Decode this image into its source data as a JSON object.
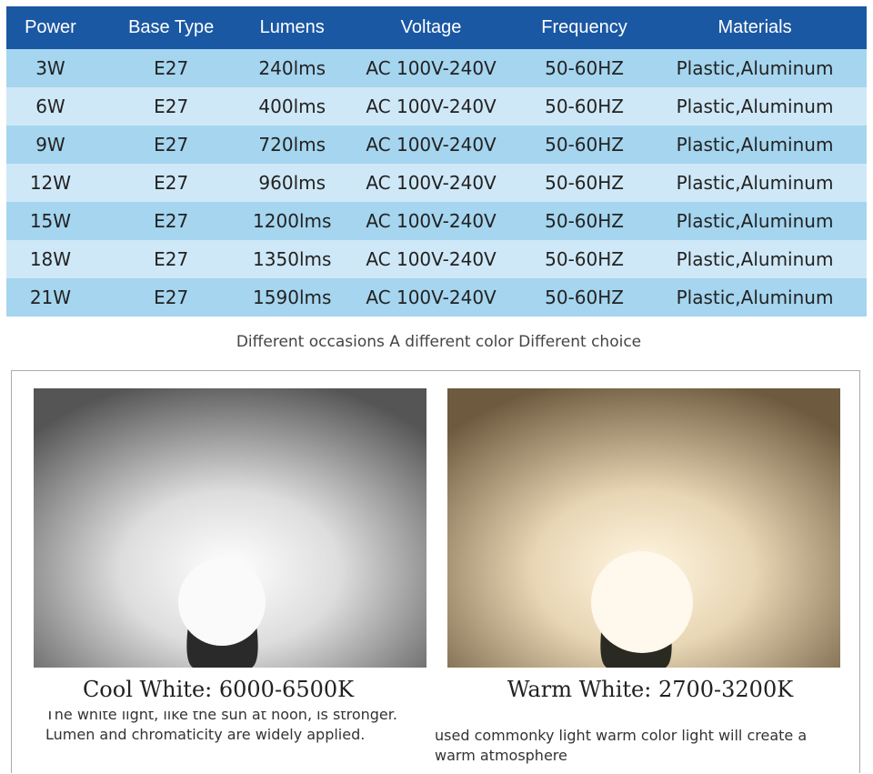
{
  "table": {
    "header": [
      "Power",
      "Base Type",
      "Lumens",
      "Voltage",
      "Frequency",
      "Materials"
    ],
    "rows": [
      [
        "3W",
        "E27",
        "240lms",
        "AC 100V-240V",
        "50-60HZ",
        "Plastic,Aluminum"
      ],
      [
        "6W",
        "E27",
        "400lms",
        "AC 100V-240V",
        "50-60HZ",
        "Plastic,Aluminum"
      ],
      [
        "9W",
        "E27",
        "720lms",
        "AC 100V-240V",
        "50-60HZ",
        "Plastic,Aluminum"
      ],
      [
        "12W",
        "E27",
        "960lms",
        "AC 100V-240V",
        "50-60HZ",
        "Plastic,Aluminum"
      ],
      [
        "15W",
        "E27",
        "1200lms",
        "AC 100V-240V",
        "50-60HZ",
        "Plastic,Aluminum"
      ],
      [
        "18W",
        "E27",
        "1350lms",
        "AC 100V-240V",
        "50-60HZ",
        "Plastic,Aluminum"
      ],
      [
        "21W",
        "E27",
        "1590lms",
        "AC 100V-240V",
        "50-60HZ",
        "Plastic,Aluminum"
      ]
    ]
  },
  "caption": "Different occasions A different color Different choice",
  "panels": [
    {
      "title": "Cool White: 6000-6500K",
      "description": [
        "The white light, like the sun at noon, is stronger.",
        "Lumen and chromaticity are widely applied."
      ]
    },
    {
      "title": "Warm White: 2700-3200K",
      "description": [
        "used commonky light warm color light will create a",
        "warm atmosphere"
      ]
    }
  ]
}
